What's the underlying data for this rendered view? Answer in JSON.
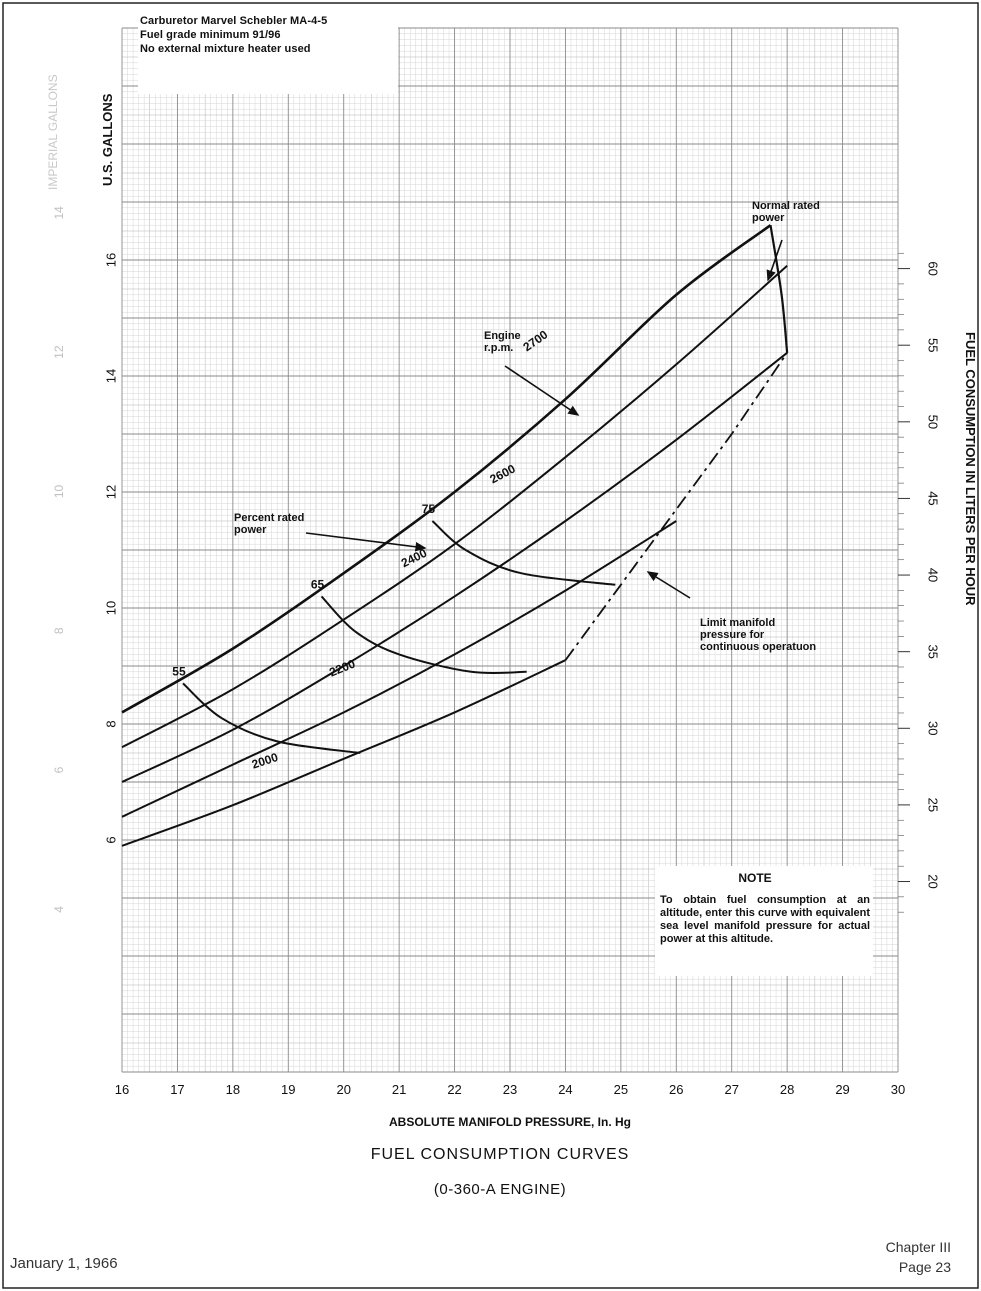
{
  "notes": {
    "line1": "Carburetor Marvel Schebler MA-4-5",
    "line2": "Fuel grade minimum 91/96",
    "line3": "No external mixture heater used"
  },
  "annotations": {
    "normal_rated_power": [
      "Normal rated",
      "power"
    ],
    "engine_rpm": [
      "Engine",
      "r.p.m."
    ],
    "percent_rated_power": [
      "Percent rated",
      "power"
    ],
    "limit_manifold": [
      "Limit manifold",
      "pressure for",
      "continuous operatuon"
    ]
  },
  "note": {
    "title": "NOTE",
    "body": "To obtain fuel consumption at an altitude, enter this curve with equivalent sea level manifold pressure for actual power at this altitude."
  },
  "footer": {
    "date": "January 1, 1966",
    "chapter": "Chapter III",
    "page": "Page 23"
  },
  "chart_data": {
    "type": "line",
    "title": "FUEL CONSUMPTION CURVES",
    "subtitle": "(0-360-A ENGINE)",
    "xlabel": "ABSOLUTE MANIFOLD PRESSURE, In. Hg",
    "ylabel_left": "U.S. GALLONS",
    "ylabel_left_faint": "IMPERIAL GALLONS",
    "ylabel_right": "FUEL CONSUMPTION IN LITERS PER HOUR",
    "xlim": [
      16,
      30
    ],
    "ylim_gal": [
      2,
      20
    ],
    "x_ticks": [
      16,
      17,
      18,
      19,
      20,
      21,
      22,
      23,
      24,
      25,
      26,
      27,
      28,
      29,
      30
    ],
    "y_ticks_gal": [
      6,
      8,
      10,
      12,
      14,
      16
    ],
    "y_ticks_liters": [
      20,
      25,
      30,
      35,
      40,
      45,
      50,
      55,
      60
    ],
    "y_ticks_imperial": [
      4,
      6,
      8,
      10,
      12,
      14
    ],
    "grid": true,
    "rpm_series": [
      {
        "name": "2700",
        "x": [
          16,
          18,
          20,
          22,
          24,
          26,
          27.7
        ],
        "y": [
          8.2,
          9.3,
          10.6,
          12.0,
          13.6,
          15.4,
          16.6
        ]
      },
      {
        "name": "2600",
        "x": [
          16,
          18,
          20,
          22,
          24,
          26,
          28
        ],
        "y": [
          7.6,
          8.6,
          9.8,
          11.1,
          12.6,
          14.2,
          15.9
        ]
      },
      {
        "name": "2400",
        "x": [
          16,
          18,
          20,
          22,
          24,
          26,
          28
        ],
        "y": [
          7.0,
          7.9,
          9.0,
          10.2,
          11.5,
          12.9,
          14.4
        ]
      },
      {
        "name": "2200",
        "x": [
          16,
          18,
          20,
          22,
          24,
          26
        ],
        "y": [
          6.4,
          7.3,
          8.2,
          9.2,
          10.3,
          11.5
        ]
      },
      {
        "name": "2000",
        "x": [
          16,
          18,
          20,
          22,
          24
        ],
        "y": [
          5.9,
          6.6,
          7.4,
          8.2,
          9.1
        ]
      }
    ],
    "percent_power_series": [
      {
        "name": "55",
        "x": [
          17.1,
          17.8,
          18.8,
          20.3
        ],
        "y": [
          8.7,
          8.1,
          7.7,
          7.5
        ]
      },
      {
        "name": "65",
        "x": [
          19.6,
          20.2,
          21.0,
          22.3,
          23.3
        ],
        "y": [
          10.2,
          9.6,
          9.2,
          8.9,
          8.9
        ]
      },
      {
        "name": "75",
        "x": [
          21.6,
          22.2,
          23.2,
          24.9
        ],
        "y": [
          11.5,
          11.0,
          10.6,
          10.4
        ]
      }
    ],
    "normal_rated_power_line": {
      "x": [
        27.7,
        27.9,
        28.0
      ],
      "y": [
        16.6,
        15.4,
        14.4
      ]
    },
    "limit_manifold_pressure": {
      "x": [
        24.0,
        25.0,
        26.0,
        27.0,
        28.0
      ],
      "y": [
        9.1,
        10.4,
        11.7,
        13.0,
        14.4
      ]
    }
  }
}
